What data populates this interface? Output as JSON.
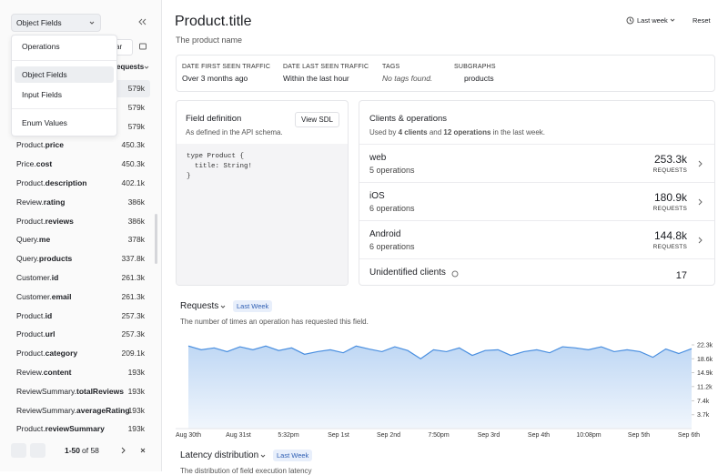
{
  "sidebar": {
    "dropdown": "Object Fields",
    "hidden_button": "ar",
    "column_header": "equests",
    "menu": [
      "Operations",
      "Object Fields",
      "Input Fields",
      "Enum Values"
    ],
    "rows": [
      {
        "requests": "579k"
      },
      {
        "requests": "579k"
      },
      {
        "requests": "579k"
      },
      {
        "type": "Product",
        "field": "price",
        "requests": "450.3k"
      },
      {
        "type": "Price",
        "field": "cost",
        "requests": "450.3k"
      },
      {
        "type": "Product",
        "field": "description",
        "requests": "402.1k"
      },
      {
        "type": "Review",
        "field": "rating",
        "requests": "386k"
      },
      {
        "type": "Product",
        "field": "reviews",
        "requests": "386k"
      },
      {
        "type": "Query",
        "field": "me",
        "requests": "378k"
      },
      {
        "type": "Query",
        "field": "products",
        "requests": "337.8k"
      },
      {
        "type": "Customer",
        "field": "id",
        "requests": "261.3k"
      },
      {
        "type": "Customer",
        "field": "email",
        "requests": "261.3k"
      },
      {
        "type": "Product",
        "field": "id",
        "requests": "257.3k"
      },
      {
        "type": "Product",
        "field": "url",
        "requests": "257.3k"
      },
      {
        "type": "Product",
        "field": "category",
        "requests": "209.1k"
      },
      {
        "type": "Review",
        "field": "content",
        "requests": "193k"
      },
      {
        "type": "ReviewSummary",
        "field": "totalReviews",
        "requests": "193k"
      },
      {
        "type": "ReviewSummary",
        "field": "averageRating",
        "requests": "193k"
      },
      {
        "type": "Product",
        "field": "reviewSummary",
        "requests": "193k"
      }
    ],
    "pagination": {
      "range": "1-50",
      "total": "of 58"
    }
  },
  "header": {
    "title": "Product.title",
    "subtitle": "The product name",
    "range": "Last week",
    "reset": "Reset"
  },
  "info": [
    {
      "label": "DATE FIRST SEEN TRAFFIC",
      "value": "Over 3 months ago"
    },
    {
      "label": "DATE LAST SEEN TRAFFIC",
      "value": "Within the last hour"
    },
    {
      "label": "TAGS",
      "value": "No tags found."
    },
    {
      "label": "SUBGRAPHS",
      "value": "products"
    }
  ],
  "field_definition": {
    "title": "Field definition",
    "button": "View SDL",
    "description": "As defined in the API schema.",
    "code": [
      "type Product {",
      "  title: String!",
      "}"
    ]
  },
  "clients": {
    "title": "Clients & operations",
    "description": [
      "Used by ",
      "4 clients",
      " and ",
      "12 operations",
      " in the last week."
    ],
    "requests_label": "REQUESTS",
    "rows": [
      {
        "name": "web",
        "operations": "5 operations",
        "requests": "253.3k"
      },
      {
        "name": "iOS",
        "operations": "6 operations",
        "requests": "180.9k"
      },
      {
        "name": "Android",
        "operations": "6 operations",
        "requests": "144.8k"
      },
      {
        "name": "Unidentified clients",
        "requests": "17"
      }
    ]
  },
  "requests_section": {
    "title": "Requests",
    "badge": "Last Week",
    "description": "The number of times an operation has requested this field."
  },
  "chart_data": {
    "type": "area",
    "color": "#4a8fe0",
    "values": [
      22000,
      21000,
      21500,
      20500,
      21800,
      21000,
      22000,
      20800,
      21500,
      19800,
      20500,
      21000,
      20200,
      22000,
      21200,
      20500,
      21800,
      20800,
      18600,
      21000,
      20500,
      21500,
      19500,
      20800,
      21000,
      19500,
      20500,
      21000,
      20200,
      21800,
      21500,
      21000,
      21800,
      20500,
      21000,
      20500,
      19000,
      21200,
      20000,
      21300
    ],
    "ylim": [
      0,
      24000
    ],
    "yticks": [
      {
        "value": 22300,
        "label": "22.3k"
      },
      {
        "value": 18600,
        "label": "18.6k"
      },
      {
        "value": 14900,
        "label": "14.9k"
      },
      {
        "value": 11200,
        "label": "11.2k"
      },
      {
        "value": 7400,
        "label": "7.4k"
      },
      {
        "value": 3700,
        "label": "3.7k"
      }
    ],
    "x_labels": [
      "Aug 30th",
      "Aug 31st",
      "5:32pm",
      "Sep 1st",
      "Sep 2nd",
      "7:50pm",
      "Sep 3rd",
      "Sep 4th",
      "10:08pm",
      "Sep 5th",
      "Sep 6th"
    ]
  },
  "latency_section": {
    "title": "Latency distribution",
    "badge": "Last Week",
    "description": "The distribution of field execution latency"
  }
}
